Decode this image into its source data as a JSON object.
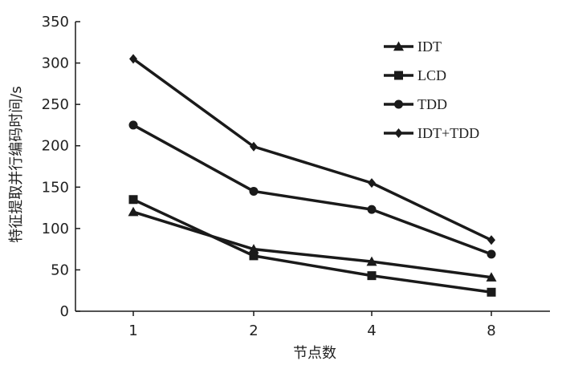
{
  "chart_data": {
    "type": "line",
    "categories": [
      "1",
      "2",
      "4",
      "8"
    ],
    "xlabel": "节点数",
    "ylabel": "特征提取并行编码时间/s",
    "ylim": [
      0,
      350
    ],
    "yticks": [
      0,
      50,
      100,
      150,
      200,
      250,
      300,
      350
    ],
    "grid": false,
    "legend_position": "top-right",
    "series": [
      {
        "name": "IDT",
        "marker": "triangle",
        "values": [
          120,
          75,
          60,
          41
        ]
      },
      {
        "name": "LCD",
        "marker": "square",
        "values": [
          135,
          67,
          43,
          23
        ]
      },
      {
        "name": "TDD",
        "marker": "circle",
        "values": [
          225,
          145,
          123,
          69
        ]
      },
      {
        "name": "IDT+TDD",
        "marker": "diamond",
        "values": [
          305,
          199,
          155,
          86
        ]
      }
    ],
    "colors": {
      "line": "#1a1a1a"
    }
  }
}
